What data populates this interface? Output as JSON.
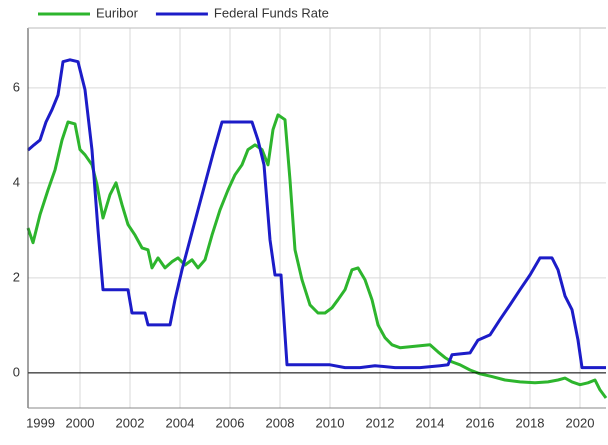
{
  "chart_data": {
    "type": "line",
    "series": [
      {
        "name": "Euribor",
        "color": "#2db52d",
        "x": [
          1997.92,
          1998.12,
          1998.4,
          1998.72,
          1999.0,
          1999.28,
          1999.52,
          1999.8,
          2000.0,
          2000.2,
          2000.48,
          2000.68,
          2000.92,
          2001.2,
          2001.44,
          2001.68,
          2001.92,
          2002.2,
          2002.48,
          2002.72,
          2002.88,
          2003.12,
          2003.4,
          2003.68,
          2003.92,
          2004.2,
          2004.48,
          2004.72,
          2005.0,
          2005.28,
          2005.6,
          2005.92,
          2006.2,
          2006.48,
          2006.72,
          2007.0,
          2007.28,
          2007.52,
          2007.72,
          2007.92,
          2008.2,
          2008.4,
          2008.6,
          2008.88,
          2009.2,
          2009.52,
          2009.8,
          2010.08,
          2010.32,
          2010.6,
          2010.88,
          2011.12,
          2011.4,
          2011.68,
          2011.92,
          2012.2,
          2012.48,
          2012.8,
          2013.2,
          2013.6,
          2014.0,
          2014.32,
          2014.6,
          2014.88,
          2015.2,
          2015.6,
          2016.0,
          2016.48,
          2017.0,
          2017.6,
          2018.2,
          2018.72,
          2019.12,
          2019.4,
          2019.68,
          2020.0,
          2020.32,
          2020.6,
          2020.8,
          2021.04
        ],
        "values": [
          3.05,
          2.74,
          3.33,
          3.85,
          4.27,
          4.9,
          5.28,
          5.24,
          4.7,
          4.59,
          4.38,
          3.96,
          3.26,
          3.75,
          4.0,
          3.54,
          3.12,
          2.9,
          2.63,
          2.59,
          2.21,
          2.42,
          2.21,
          2.34,
          2.42,
          2.27,
          2.38,
          2.21,
          2.38,
          2.9,
          3.43,
          3.85,
          4.17,
          4.38,
          4.7,
          4.8,
          4.7,
          4.38,
          5.12,
          5.43,
          5.33,
          4.06,
          2.59,
          1.96,
          1.43,
          1.26,
          1.26,
          1.37,
          1.54,
          1.75,
          2.17,
          2.21,
          1.96,
          1.54,
          1.01,
          0.74,
          0.59,
          0.53,
          0.55,
          0.57,
          0.59,
          0.44,
          0.32,
          0.23,
          0.17,
          0.06,
          -0.02,
          -0.08,
          -0.15,
          -0.19,
          -0.21,
          -0.19,
          -0.15,
          -0.11,
          -0.19,
          -0.25,
          -0.21,
          -0.15,
          -0.36,
          -0.53
        ]
      },
      {
        "name": "Federal Funds Rate",
        "color": "#1c1cc8",
        "x": [
          1997.92,
          1998.16,
          1998.4,
          1998.64,
          1998.88,
          1999.12,
          1999.32,
          1999.6,
          1999.92,
          2000.2,
          2000.48,
          2000.72,
          2000.92,
          2001.2,
          2001.6,
          2001.92,
          2002.08,
          2002.6,
          2002.72,
          2003.2,
          2003.6,
          2003.8,
          2004.08,
          2004.4,
          2004.72,
          2005.04,
          2005.36,
          2005.68,
          2006.2,
          2006.72,
          2006.88,
          2007.12,
          2007.36,
          2007.6,
          2007.8,
          2008.04,
          2008.28,
          2008.48,
          2009.2,
          2010.0,
          2010.6,
          2011.2,
          2011.8,
          2012.6,
          2013.6,
          2014.4,
          2014.72,
          2014.88,
          2015.6,
          2015.92,
          2016.4,
          2016.8,
          2017.2,
          2017.6,
          2018.0,
          2018.4,
          2018.88,
          2019.12,
          2019.4,
          2019.68,
          2019.92,
          2020.08,
          2020.4,
          2021.04
        ],
        "values": [
          4.69,
          4.8,
          4.9,
          5.28,
          5.54,
          5.85,
          6.55,
          6.59,
          6.55,
          5.96,
          4.69,
          3.01,
          1.75,
          1.75,
          1.75,
          1.75,
          1.26,
          1.26,
          1.01,
          1.01,
          1.01,
          1.54,
          2.17,
          2.8,
          3.43,
          4.06,
          4.69,
          5.28,
          5.28,
          5.28,
          5.28,
          4.9,
          4.38,
          2.8,
          2.06,
          2.06,
          0.17,
          0.17,
          0.17,
          0.17,
          0.11,
          0.11,
          0.15,
          0.11,
          0.11,
          0.15,
          0.17,
          0.38,
          0.42,
          0.69,
          0.8,
          1.12,
          1.43,
          1.75,
          2.06,
          2.42,
          2.42,
          2.17,
          1.62,
          1.33,
          0.69,
          0.11,
          0.11,
          0.11
        ]
      }
    ],
    "xlim": [
      1997.92,
      2021.04
    ],
    "xticks": [
      1999,
      2000,
      2002,
      2004,
      2006,
      2008,
      2010,
      2012,
      2014,
      2016,
      2018,
      2020
    ],
    "ylim": [
      -0.74,
      7.26
    ],
    "yticks": [
      0,
      2,
      4,
      6
    ],
    "grid": true,
    "legend": "top"
  }
}
